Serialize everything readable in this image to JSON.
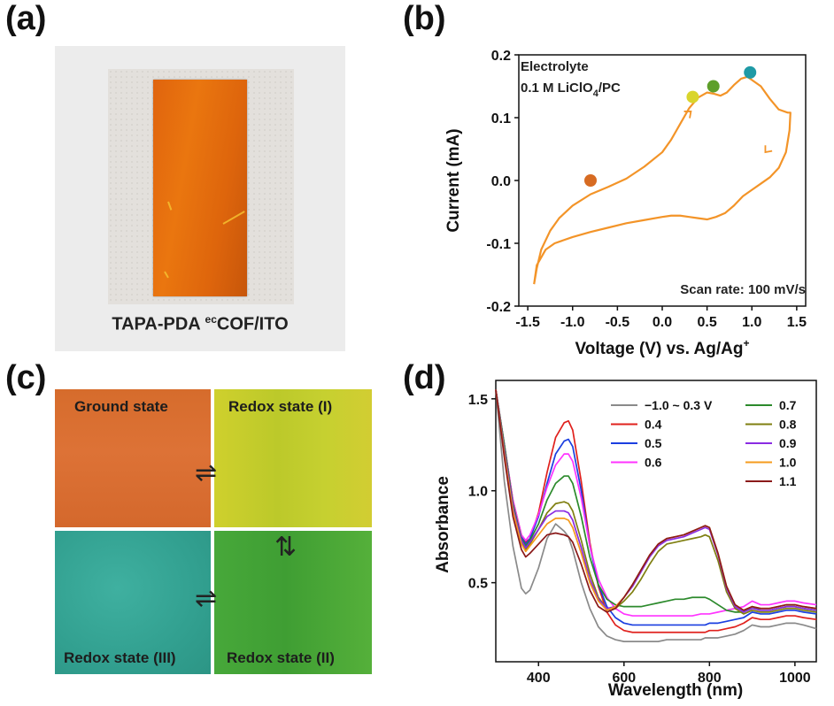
{
  "panels": {
    "a": {
      "letter": "(a)",
      "caption": "TAPA-PDA ecCOF/ITO",
      "caption_main": "TAPA-PDA ",
      "caption_sup": "ec",
      "caption_tail": "COF/ITO"
    },
    "b": {
      "letter": "(b)"
    },
    "c": {
      "letter": "(c)"
    },
    "d": {
      "letter": "(d)"
    }
  },
  "colors": {
    "cv_curve": "#f39428",
    "ground_state": "#dc6f33",
    "redox_I": "#c3cc2e",
    "redox_II": "#4fab36",
    "redox_III": "#3aa896"
  },
  "states": {
    "ground": "Ground state",
    "redox_I": "Redox state (I)",
    "redox_II": "Redox state (II)",
    "redox_III": "Redox state (III)",
    "arrow_horizontal": "⇌",
    "arrow_vertical": "⇅"
  },
  "chart_data": [
    {
      "panel": "b",
      "type": "line",
      "title": "",
      "xlabel": "Voltage (V) vs. Ag/Ag",
      "xlabel_sup": "+",
      "ylabel": "Current (mA)",
      "xlim": [
        -1.6,
        1.6
      ],
      "ylim": [
        -0.2,
        0.2
      ],
      "xticks": [
        "-1.5",
        "-1.0",
        "-0.5",
        "0.0",
        "0.5",
        "1.0",
        "1.5"
      ],
      "xtick_values": [
        -1.5,
        -1.0,
        -0.5,
        0.0,
        0.5,
        1.0,
        1.5
      ],
      "yticks": [
        "0.2",
        "0.1",
        "0.0",
        "-0.1",
        "-0.2"
      ],
      "ytick_values": [
        0.2,
        0.1,
        0.0,
        -0.1,
        -0.2
      ],
      "annotation_top_1": "Electrolyte",
      "annotation_top_2a": "0.1 M LiClO",
      "annotation_top_2_sub": "4",
      "annotation_top_2b": "/PC",
      "annotation_bottom": "Scan rate: 100 mV/s",
      "cv_forward": {
        "x": [
          -1.43,
          -1.4,
          -1.35,
          -1.25,
          -1.15,
          -1.0,
          -0.8,
          -0.6,
          -0.4,
          -0.2,
          0.0,
          0.1,
          0.2,
          0.3,
          0.4,
          0.5,
          0.58,
          0.65,
          0.72,
          0.8,
          0.88,
          0.95,
          1.0,
          1.1,
          1.2,
          1.3,
          1.4,
          1.43
        ],
        "y": [
          -0.165,
          -0.14,
          -0.11,
          -0.08,
          -0.06,
          -0.04,
          -0.022,
          -0.01,
          0.003,
          0.022,
          0.045,
          0.065,
          0.09,
          0.115,
          0.132,
          0.14,
          0.138,
          0.135,
          0.14,
          0.152,
          0.162,
          0.165,
          0.16,
          0.15,
          0.13,
          0.113,
          0.108,
          0.108
        ]
      },
      "cv_reverse": {
        "x": [
          1.43,
          1.42,
          1.38,
          1.3,
          1.2,
          1.1,
          1.0,
          0.9,
          0.8,
          0.7,
          0.6,
          0.5,
          0.4,
          0.3,
          0.2,
          0.1,
          0.0,
          -0.2,
          -0.4,
          -0.6,
          -0.8,
          -1.0,
          -1.2,
          -1.3,
          -1.4,
          -1.43
        ],
        "y": [
          0.108,
          0.08,
          0.045,
          0.02,
          0.005,
          -0.005,
          -0.015,
          -0.025,
          -0.04,
          -0.052,
          -0.058,
          -0.062,
          -0.06,
          -0.058,
          -0.056,
          -0.056,
          -0.058,
          -0.063,
          -0.068,
          -0.075,
          -0.082,
          -0.09,
          -0.1,
          -0.11,
          -0.135,
          -0.165
        ]
      },
      "direction_arrows": [
        {
          "x": 0.32,
          "y": 0.11,
          "angle": -40
        },
        {
          "x": 1.15,
          "y": 0.045,
          "angle": 130
        }
      ],
      "markers": [
        {
          "x": -0.8,
          "y": 0.0,
          "color": "#d76b22"
        },
        {
          "x": 0.34,
          "y": 0.133,
          "color": "#d9d52c"
        },
        {
          "x": 0.57,
          "y": 0.15,
          "color": "#5e9f2a"
        },
        {
          "x": 0.98,
          "y": 0.172,
          "color": "#1f9aa6"
        }
      ]
    },
    {
      "panel": "d",
      "type": "line",
      "title": "",
      "xlabel": "Wavelength (nm)",
      "ylabel": "Absorbance",
      "xlim": [
        300,
        1050
      ],
      "ylim": [
        0.07,
        1.6
      ],
      "xticks": [
        "400",
        "600",
        "800",
        "1000"
      ],
      "xtick_values": [
        400,
        600,
        800,
        1000
      ],
      "yticks": [
        "0.5",
        "1.0",
        "1.5"
      ],
      "ytick_values": [
        0.5,
        1.0,
        1.5
      ],
      "x": [
        300,
        320,
        340,
        360,
        370,
        380,
        400,
        420,
        440,
        460,
        470,
        480,
        500,
        520,
        540,
        560,
        580,
        600,
        620,
        640,
        660,
        680,
        700,
        720,
        740,
        760,
        780,
        790,
        800,
        820,
        840,
        860,
        880,
        900,
        920,
        940,
        960,
        980,
        1000,
        1020,
        1050
      ],
      "series": [
        {
          "name": "−1.0 ~ 0.3 V",
          "color": "#8a8a8a",
          "values": [
            1.55,
            1.05,
            0.7,
            0.47,
            0.44,
            0.46,
            0.58,
            0.74,
            0.82,
            0.78,
            0.75,
            0.68,
            0.5,
            0.36,
            0.26,
            0.21,
            0.19,
            0.18,
            0.18,
            0.18,
            0.18,
            0.18,
            0.19,
            0.19,
            0.19,
            0.19,
            0.19,
            0.2,
            0.2,
            0.2,
            0.21,
            0.22,
            0.24,
            0.27,
            0.26,
            0.26,
            0.27,
            0.28,
            0.28,
            0.27,
            0.25
          ]
        },
        {
          "name": "0.4",
          "color": "#e0211d",
          "values": [
            1.55,
            1.25,
            0.95,
            0.76,
            0.72,
            0.74,
            0.88,
            1.1,
            1.29,
            1.37,
            1.38,
            1.33,
            1.05,
            0.72,
            0.48,
            0.34,
            0.27,
            0.24,
            0.23,
            0.23,
            0.23,
            0.23,
            0.23,
            0.23,
            0.23,
            0.23,
            0.23,
            0.23,
            0.24,
            0.24,
            0.25,
            0.26,
            0.28,
            0.31,
            0.3,
            0.3,
            0.31,
            0.32,
            0.32,
            0.31,
            0.3
          ]
        },
        {
          "name": "0.5",
          "color": "#1b3fe0",
          "values": [
            1.55,
            1.25,
            0.94,
            0.75,
            0.71,
            0.74,
            0.86,
            1.04,
            1.2,
            1.27,
            1.28,
            1.24,
            1.0,
            0.7,
            0.49,
            0.37,
            0.31,
            0.28,
            0.27,
            0.27,
            0.27,
            0.27,
            0.27,
            0.27,
            0.27,
            0.27,
            0.27,
            0.27,
            0.28,
            0.28,
            0.29,
            0.3,
            0.31,
            0.34,
            0.33,
            0.33,
            0.34,
            0.35,
            0.35,
            0.34,
            0.33
          ]
        },
        {
          "name": "0.6",
          "color": "#ff33ff",
          "values": [
            1.55,
            1.25,
            0.95,
            0.76,
            0.73,
            0.76,
            0.87,
            1.02,
            1.14,
            1.2,
            1.2,
            1.16,
            0.96,
            0.7,
            0.52,
            0.42,
            0.36,
            0.33,
            0.32,
            0.32,
            0.32,
            0.32,
            0.32,
            0.32,
            0.32,
            0.32,
            0.33,
            0.33,
            0.33,
            0.34,
            0.35,
            0.36,
            0.37,
            0.4,
            0.38,
            0.38,
            0.39,
            0.4,
            0.4,
            0.39,
            0.38
          ]
        },
        {
          "name": "0.7",
          "color": "#2c8a2c",
          "values": [
            1.55,
            1.25,
            0.93,
            0.74,
            0.7,
            0.73,
            0.82,
            0.95,
            1.04,
            1.08,
            1.08,
            1.04,
            0.86,
            0.64,
            0.49,
            0.41,
            0.38,
            0.37,
            0.37,
            0.37,
            0.38,
            0.39,
            0.4,
            0.41,
            0.41,
            0.42,
            0.42,
            0.42,
            0.41,
            0.38,
            0.35,
            0.34,
            0.34,
            0.37,
            0.35,
            0.35,
            0.36,
            0.37,
            0.37,
            0.36,
            0.35
          ]
        },
        {
          "name": "0.8",
          "color": "#7f7f10",
          "values": [
            1.55,
            1.22,
            0.9,
            0.72,
            0.68,
            0.71,
            0.79,
            0.88,
            0.93,
            0.94,
            0.93,
            0.89,
            0.73,
            0.55,
            0.42,
            0.36,
            0.36,
            0.4,
            0.45,
            0.52,
            0.6,
            0.67,
            0.71,
            0.72,
            0.73,
            0.74,
            0.75,
            0.76,
            0.75,
            0.62,
            0.45,
            0.36,
            0.33,
            0.35,
            0.34,
            0.34,
            0.35,
            0.36,
            0.36,
            0.35,
            0.34
          ]
        },
        {
          "name": "0.9",
          "color": "#8a2be2",
          "values": [
            1.55,
            1.22,
            0.91,
            0.73,
            0.69,
            0.72,
            0.79,
            0.86,
            0.89,
            0.89,
            0.88,
            0.84,
            0.69,
            0.52,
            0.41,
            0.36,
            0.37,
            0.42,
            0.48,
            0.56,
            0.64,
            0.7,
            0.73,
            0.74,
            0.75,
            0.77,
            0.79,
            0.8,
            0.79,
            0.65,
            0.47,
            0.37,
            0.34,
            0.36,
            0.35,
            0.35,
            0.36,
            0.37,
            0.37,
            0.36,
            0.35
          ]
        },
        {
          "name": "1.0",
          "color": "#f59b1d",
          "values": [
            1.55,
            1.2,
            0.89,
            0.71,
            0.67,
            0.7,
            0.76,
            0.82,
            0.85,
            0.85,
            0.84,
            0.8,
            0.66,
            0.5,
            0.4,
            0.35,
            0.37,
            0.42,
            0.49,
            0.57,
            0.65,
            0.71,
            0.74,
            0.75,
            0.76,
            0.78,
            0.8,
            0.81,
            0.8,
            0.66,
            0.48,
            0.38,
            0.35,
            0.37,
            0.36,
            0.36,
            0.37,
            0.38,
            0.38,
            0.37,
            0.36
          ]
        },
        {
          "name": "1.1",
          "color": "#8b1a1a",
          "values": [
            1.55,
            1.18,
            0.86,
            0.68,
            0.64,
            0.66,
            0.71,
            0.76,
            0.77,
            0.76,
            0.75,
            0.72,
            0.6,
            0.46,
            0.37,
            0.34,
            0.36,
            0.42,
            0.49,
            0.57,
            0.65,
            0.71,
            0.74,
            0.75,
            0.76,
            0.78,
            0.8,
            0.81,
            0.8,
            0.66,
            0.48,
            0.38,
            0.35,
            0.37,
            0.36,
            0.36,
            0.37,
            0.38,
            0.38,
            0.37,
            0.36
          ]
        }
      ]
    }
  ]
}
